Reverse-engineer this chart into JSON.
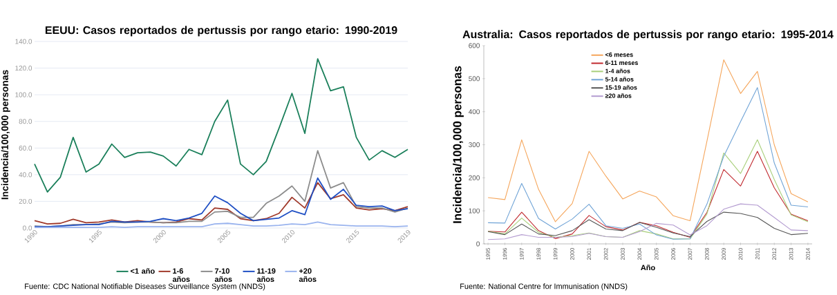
{
  "chart_data": [
    {
      "type": "line",
      "title": "EEUU: Casos reportados de pertussis por rango etario: 1990-2019",
      "ylabel": "Incidencia/100,000 personas",
      "x": [
        1990,
        1991,
        1992,
        1993,
        1994,
        1995,
        1996,
        1997,
        1998,
        1999,
        2000,
        2001,
        2002,
        2003,
        2004,
        2005,
        2006,
        2007,
        2008,
        2009,
        2010,
        2011,
        2012,
        2013,
        2014,
        2015,
        2016,
        2017,
        2018,
        2019
      ],
      "series": [
        {
          "name": "<1 año",
          "color": "#1a7f5a",
          "values": [
            48,
            27,
            38,
            68,
            42,
            48,
            63,
            53,
            56.5,
            57,
            54,
            46.5,
            59,
            55,
            80,
            96,
            48,
            40,
            50,
            75,
            101,
            71,
            127,
            103,
            106,
            68,
            51,
            58,
            53,
            59
          ]
        },
        {
          "name": "1-6 años",
          "color": "#a0392a",
          "values": [
            5.5,
            3,
            3.5,
            6.5,
            4,
            4.5,
            6,
            4.5,
            5.5,
            4.5,
            4,
            4.5,
            7,
            6,
            15,
            14,
            7,
            5.5,
            7,
            11,
            23,
            15,
            34,
            22,
            25,
            15,
            13.5,
            14.5,
            13,
            16
          ]
        },
        {
          "name": "7-10 años",
          "color": "#8c8c8c",
          "values": [
            1.5,
            1,
            1.5,
            2.5,
            2.5,
            3,
            4.5,
            4,
            4.5,
            4.5,
            4,
            4,
            5,
            5,
            12,
            12.5,
            8,
            8,
            18.5,
            24,
            31.5,
            20,
            58,
            30,
            34,
            16,
            15,
            15,
            12,
            15
          ]
        },
        {
          "name": "11-19 años",
          "color": "#1f4fc4",
          "values": [
            1,
            1,
            1.5,
            2,
            2.5,
            2.5,
            5,
            4.5,
            4.5,
            5,
            7,
            5.5,
            7.5,
            11,
            24,
            19,
            11,
            5.5,
            6.5,
            7.5,
            13,
            10,
            37.5,
            21.5,
            29,
            17,
            16,
            16.5,
            13,
            14.5
          ]
        },
        {
          "name": "+20 años",
          "color": "#99b3ee",
          "values": [
            0.5,
            0.5,
            0.5,
            0.5,
            0.5,
            0.5,
            1,
            0.5,
            1,
            1,
            1,
            1,
            1,
            1,
            3,
            3.5,
            2.5,
            1.5,
            1.5,
            2,
            3,
            2.5,
            4.5,
            2.5,
            2,
            1.5,
            1.5,
            1.5,
            1,
            1.5
          ]
        }
      ],
      "xlim": [
        1990,
        2019
      ],
      "xticks": [
        1990,
        1995,
        2000,
        2005,
        2010,
        2015,
        2019
      ],
      "ylim": [
        0,
        140
      ],
      "yticks": [
        {
          "value": 0,
          "label": "0.0"
        },
        {
          "value": 20,
          "label": "20.0"
        },
        {
          "value": 40,
          "label": "40.0"
        },
        {
          "value": 60,
          "label": "60.0"
        },
        {
          "value": 80,
          "label": "80.0"
        },
        {
          "value": 100,
          "label": "100.0"
        },
        {
          "value": 120,
          "label": "120.0"
        },
        {
          "value": 140,
          "label": "140.0"
        }
      ],
      "grid": "y",
      "legend": "bottom",
      "annotations": [
        "Fuente: CDC National Notifiable Diseases Surveillance System (NNDS)"
      ]
    },
    {
      "type": "line",
      "title": "Australia: Casos reportados de pertussis por rango etario: 1995-2014",
      "xlabel": "Año",
      "ylabel": "Incidencia/100,000 personas",
      "categories": [
        "1995",
        "1996",
        "1997",
        "1998",
        "1999",
        "2000",
        "2001",
        "2002",
        "2003",
        "2004",
        "2005",
        "2006",
        "2007",
        "2008",
        "2009",
        "2010",
        "2011",
        "2012",
        "2013",
        "2014"
      ],
      "series": [
        {
          "name": "<6 meses",
          "color": "#f5a55a",
          "values": [
            140,
            134,
            315,
            165,
            67,
            122,
            280,
            205,
            136,
            160,
            142,
            85,
            70,
            310,
            557,
            455,
            522,
            300,
            152,
            127
          ]
        },
        {
          "name": "6-11 meses",
          "color": "#c0282e",
          "values": [
            38,
            36,
            96,
            40,
            16,
            30,
            86,
            52,
            42,
            65,
            55,
            35,
            20,
            95,
            225,
            175,
            280,
            170,
            90,
            70
          ]
        },
        {
          "name": "1-4 años",
          "color": "#a8cf7a",
          "values": [
            38,
            30,
            78,
            35,
            20,
            25,
            33,
            22,
            20,
            40,
            30,
            15,
            15,
            90,
            275,
            213,
            315,
            195,
            88,
            67
          ]
        },
        {
          "name": "5-14 años",
          "color": "#6fa3d6",
          "values": [
            64,
            63,
            183,
            77,
            45,
            75,
            120,
            55,
            47,
            60,
            27,
            14,
            15,
            120,
            265,
            370,
            473,
            245,
            117,
            112
          ]
        },
        {
          "name": "15-19 años",
          "color": "#555555",
          "values": [
            37,
            28,
            60,
            30,
            25,
            40,
            73,
            45,
            40,
            65,
            50,
            33,
            22,
            68,
            96,
            92,
            80,
            47,
            28,
            32
          ]
        },
        {
          "name": "≥20 años",
          "color": "#b39bd0",
          "values": [
            13,
            15,
            28,
            20,
            20,
            22,
            32,
            22,
            20,
            37,
            62,
            57,
            27,
            55,
            105,
            121,
            117,
            80,
            42,
            40
          ]
        }
      ],
      "ylim": [
        0,
        600
      ],
      "yticks": [
        0,
        100,
        200,
        300,
        400,
        500,
        600
      ],
      "legend": "top",
      "annotations": [
        "Fuente: National Centre for Immunisation (NNDS)"
      ]
    }
  ]
}
